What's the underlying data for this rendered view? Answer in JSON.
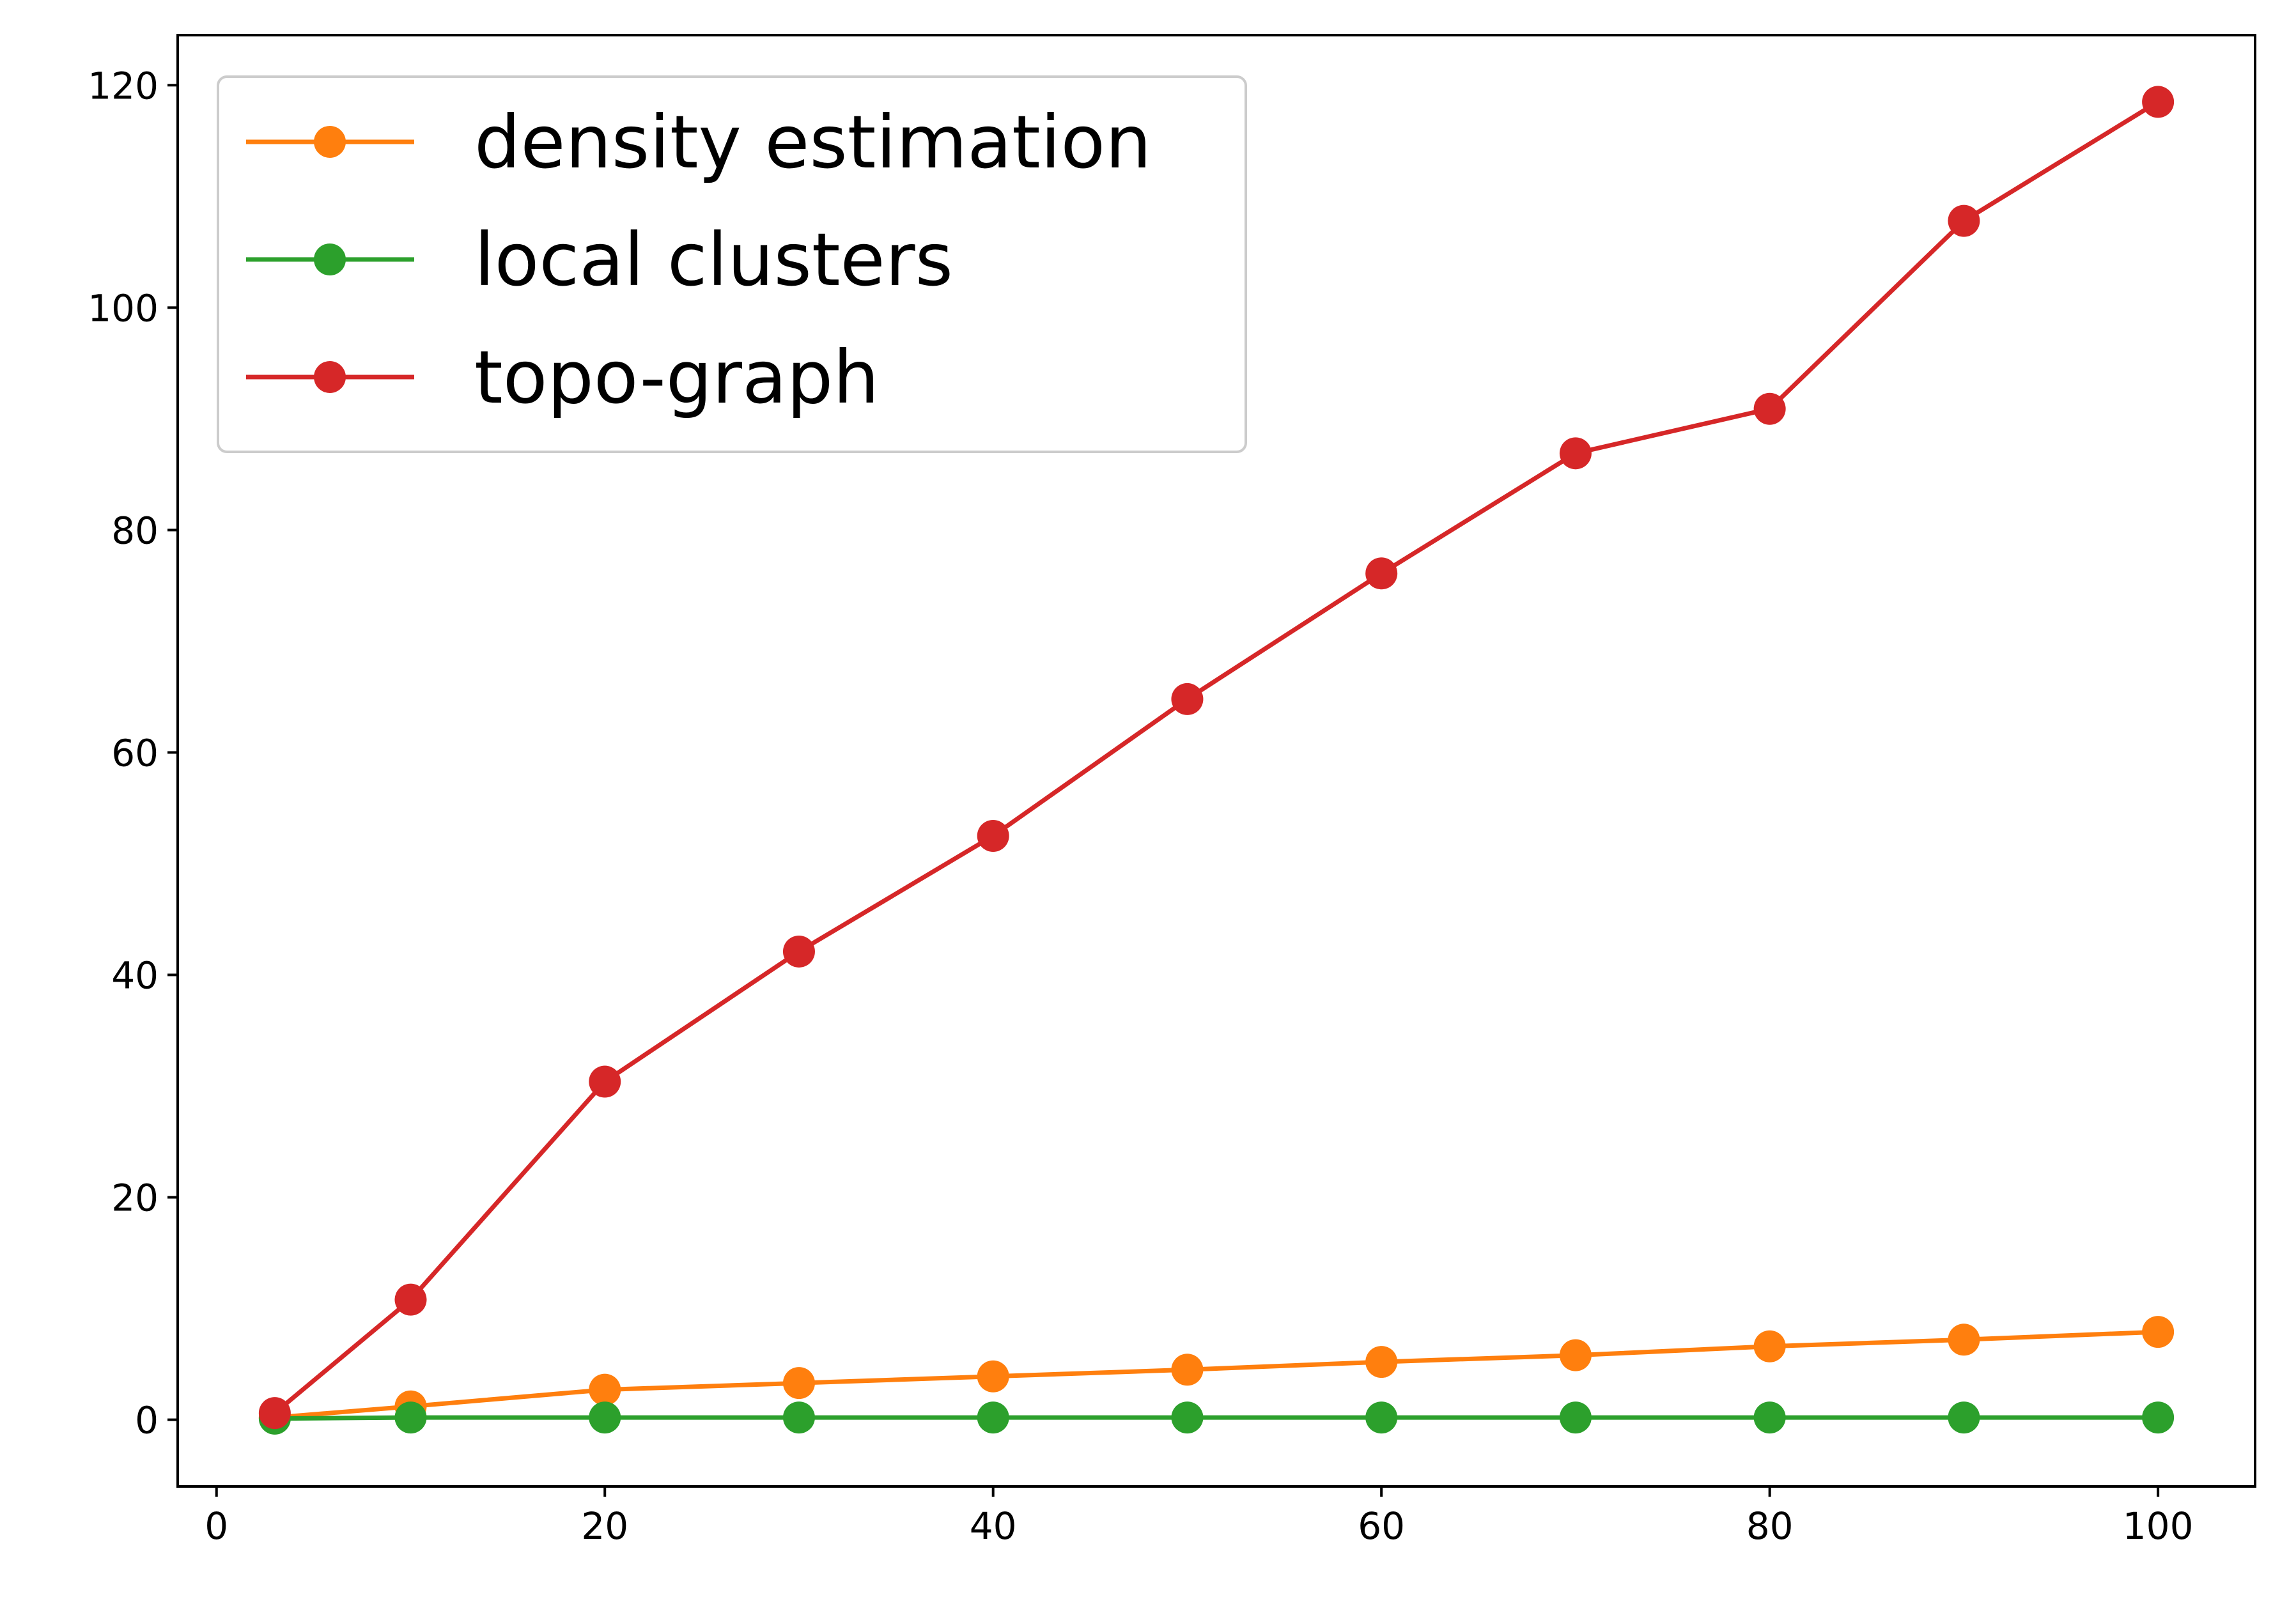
{
  "chart_data": {
    "type": "line",
    "title": "",
    "xlabel": "",
    "ylabel": "",
    "x": [
      3,
      10,
      20,
      30,
      40,
      50,
      60,
      70,
      80,
      90,
      100
    ],
    "xlim": [
      -2,
      105
    ],
    "ylim": [
      -6,
      124.5
    ],
    "xticks": [
      0,
      20,
      40,
      60,
      80,
      100
    ],
    "yticks": [
      0,
      20,
      40,
      60,
      80,
      100,
      120
    ],
    "grid": false,
    "legend_position": "upper-left",
    "series": [
      {
        "name": "density estimation",
        "color": "#ff7f0e",
        "marker": "circle",
        "values": [
          0.2,
          1.2,
          2.7,
          3.3,
          3.9,
          4.5,
          5.2,
          5.8,
          6.6,
          7.2,
          7.9
        ]
      },
      {
        "name": "local clusters",
        "color": "#2ca02c",
        "marker": "circle",
        "values": [
          0.1,
          0.2,
          0.2,
          0.2,
          0.2,
          0.2,
          0.2,
          0.2,
          0.2,
          0.2,
          0.2
        ]
      },
      {
        "name": "topo-graph",
        "color": "#d62728",
        "marker": "circle",
        "values": [
          0.6,
          10.8,
          30.4,
          42.1,
          52.5,
          64.8,
          76.1,
          86.9,
          90.9,
          107.8,
          118.5
        ]
      }
    ]
  }
}
